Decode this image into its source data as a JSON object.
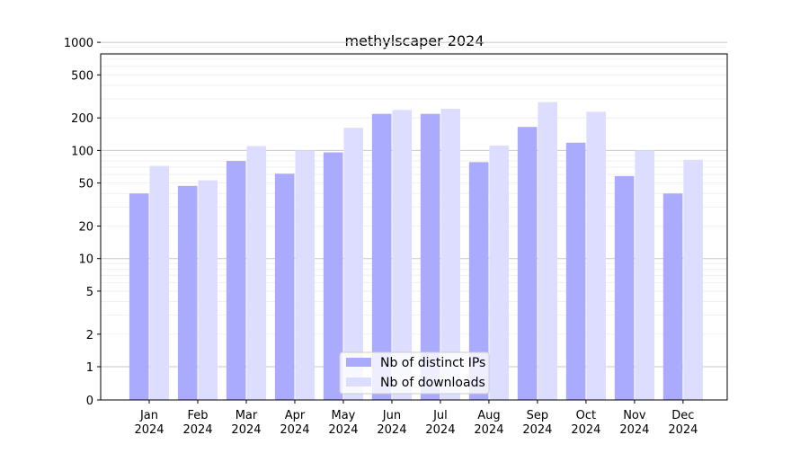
{
  "chart_data": {
    "type": "bar",
    "title": "methylscaper 2024",
    "xlabel": "",
    "ylabel": "",
    "yscale": "symlog",
    "ylim": [
      0,
      1300
    ],
    "categories": [
      "Jan\n2024",
      "Feb\n2024",
      "Mar\n2024",
      "Apr\n2024",
      "May\n2024",
      "Jun\n2024",
      "Jul\n2024",
      "Aug\n2024",
      "Sep\n2024",
      "Oct\n2024",
      "Nov\n2024",
      "Dec\n2024"
    ],
    "series": [
      {
        "name": "Nb of distinct IPs",
        "color": "#aaaaff",
        "values": [
          40,
          47,
          80,
          61,
          96,
          218,
          218,
          78,
          165,
          118,
          58,
          40
        ]
      },
      {
        "name": "Nb of downloads",
        "color": "#ddddff",
        "values": [
          72,
          53,
          110,
          100,
          162,
          237,
          243,
          111,
          280,
          228,
          100,
          82
        ]
      }
    ],
    "yticks": [
      0,
      1,
      2,
      5,
      10,
      20,
      50,
      100,
      200,
      500,
      1000
    ],
    "grid": true,
    "legend": "lower-center"
  }
}
